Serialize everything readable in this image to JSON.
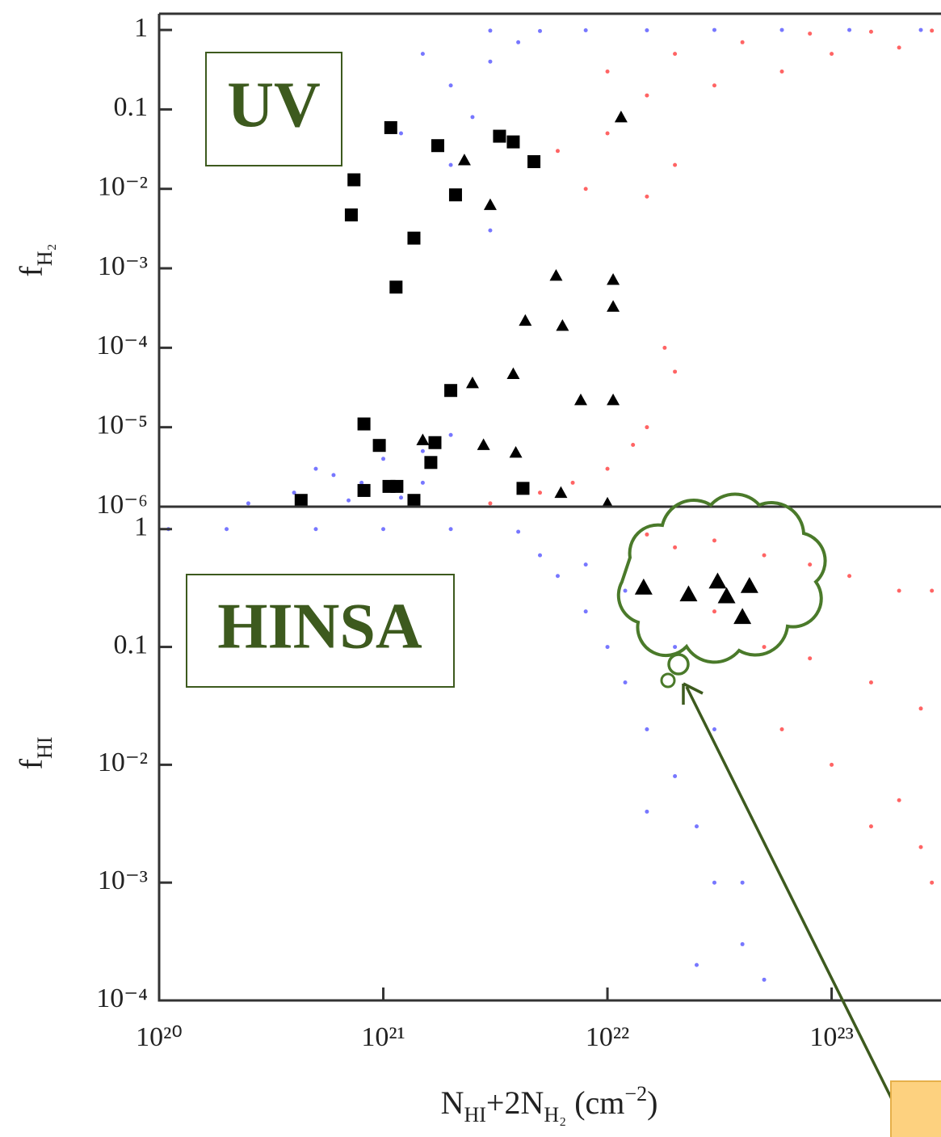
{
  "chart_data": [
    {
      "type": "scatter",
      "log_x": true,
      "log_y": true,
      "xlim": [
        1e+20,
        3e+23
      ],
      "ylim": [
        1e-06,
        1.6
      ],
      "yticks": [
        1,
        0.1,
        {
          "value": 0.01,
          "label": "10⁻²"
        },
        {
          "value": 0.001,
          "label": "10⁻³"
        },
        {
          "value": 0.0001,
          "label": "10⁻⁴"
        },
        {
          "value": 1e-05,
          "label": "10⁻⁵"
        },
        {
          "value": 1e-06,
          "label": "10⁻⁶"
        }
      ],
      "ylabel": {
        "text": "f",
        "sub": "H₂"
      },
      "annotation": "UV",
      "series": [
        {
          "marker": "dot",
          "color": "#4a4aff",
          "x": [
            3e+21,
            5e+21,
            8e+21,
            1.5e+22,
            3e+22,
            6e+22,
            1.2e+23,
            2.5e+23,
            1.5e+21,
            2e+21,
            2.5e+21,
            3e+21,
            4e+21,
            1.2e+21,
            2e+21,
            3e+21,
            2.5e+20,
            4e+20,
            6e+20,
            8e+20,
            1e+21,
            1.5e+21,
            2e+21,
            5e+20,
            1.2e+21,
            1.5e+21,
            7e+20
          ],
          "values": [
            0.98,
            0.97,
            0.99,
            0.99,
            1,
            1,
            1,
            1,
            0.5,
            0.2,
            0.08,
            0.4,
            0.7,
            0.05,
            0.02,
            0.003,
            1.1e-06,
            1.5e-06,
            2.5e-06,
            2e-06,
            4e-06,
            5e-06,
            8e-06,
            3e-06,
            1.3e-06,
            2e-06,
            1.2e-06
          ]
        },
        {
          "marker": "dot",
          "color": "#ff3030",
          "x": [
            1e+22,
            2e+22,
            4e+22,
            8e+22,
            1.5e+23,
            2.8e+23,
            1.5e+22,
            3e+22,
            6e+22,
            1e+23,
            2e+23,
            6e+21,
            8e+21,
            1e+22,
            1.5e+22,
            2e+22,
            3e+21,
            5e+21,
            7e+21,
            1e+22,
            1.3e+22,
            1.5e+22,
            2e+22,
            1.8e+22
          ],
          "values": [
            0.3,
            0.5,
            0.7,
            0.9,
            0.95,
            0.98,
            0.15,
            0.2,
            0.3,
            0.5,
            0.6,
            0.03,
            0.01,
            0.05,
            0.008,
            0.02,
            1.1e-06,
            1.5e-06,
            2e-06,
            3e-06,
            6e-06,
            1e-05,
            5e-05,
            0.0001
          ]
        },
        {
          "marker": "square",
          "color": "#000000",
          "x": [
            7.4e+20,
            7.2e+20,
            1.08e+21,
            1.75e+21,
            2.1e+21,
            1.37e+21,
            1.14e+21,
            3.3e+21,
            3.8e+21,
            4.7e+21,
            2e+21,
            8.2e+20,
            9.6e+20,
            1.7e+21,
            1.63e+21,
            8.2e+20,
            1.06e+21,
            1.15e+21,
            1.37e+21,
            4.3e+20,
            4.2e+21
          ],
          "values": [
            0.013,
            0.0047,
            0.059,
            0.035,
            0.0084,
            0.0024,
            0.00058,
            0.046,
            0.039,
            0.022,
            2.9e-05,
            1.1e-05,
            5.9e-06,
            6.4e-06,
            3.6e-06,
            1.6e-06,
            1.8e-06,
            1.8e-06,
            1.2e-06,
            1.2e-06,
            1.7e-06
          ]
        },
        {
          "marker": "triangle",
          "color": "#000000",
          "x": [
            1.15e+22,
            2.3e+21,
            3e+21,
            5.9e+21,
            1.06e+22,
            1.06e+22,
            4.3e+21,
            6.3e+21,
            3.8e+21,
            2.5e+21,
            7.6e+21,
            1.06e+22,
            1.5e+21,
            2.8e+21,
            3.9e+21,
            6.2e+21,
            1e+22
          ],
          "values": [
            0.08,
            0.023,
            0.0063,
            0.00081,
            0.00072,
            0.00033,
            0.00022,
            0.00019,
            4.7e-05,
            3.6e-05,
            2.2e-05,
            2.2e-05,
            6.9e-06,
            6e-06,
            4.8e-06,
            1.5e-06,
            1.1e-06
          ]
        }
      ]
    },
    {
      "type": "scatter",
      "log_x": true,
      "log_y": true,
      "xlim": [
        1e+20,
        3e+23
      ],
      "ylim": [
        0.0001,
        1.55
      ],
      "xticks": [
        {
          "value": 1e+20,
          "label": "10²⁰"
        },
        {
          "value": 1e+21,
          "label": "10²¹"
        },
        {
          "value": 1e+22,
          "label": "10²²"
        },
        {
          "value": 1e+23,
          "label": "10²³"
        }
      ],
      "yticks": [
        1,
        0.1,
        {
          "value": 0.01,
          "label": "10⁻²"
        },
        {
          "value": 0.001,
          "label": "10⁻³"
        },
        {
          "value": 0.0001,
          "label": "10⁻⁴"
        }
      ],
      "ylabel": {
        "text": "f",
        "sub": "HI"
      },
      "xlabel": {
        "parts": [
          "N",
          "HI",
          "+2N",
          "H₂",
          " (cm",
          "−2",
          ")"
        ]
      },
      "annotation": "HINSA",
      "series": [
        {
          "marker": "dot",
          "color": "#4a4aff",
          "x": [
            1.1e+20,
            2e+20,
            5e+20,
            1e+21,
            2e+21,
            4e+21,
            5e+21,
            6e+21,
            8e+21,
            1e+22,
            1.2e+22,
            1.5e+22,
            2e+22,
            2.5e+22,
            3e+22,
            4e+22,
            5e+22,
            8e+21,
            1.2e+22,
            2e+22,
            3e+22,
            1.5e+22,
            2.5e+22,
            4e+22
          ],
          "values": [
            1,
            1,
            1,
            1,
            1,
            0.95,
            0.6,
            0.4,
            0.2,
            0.1,
            0.05,
            0.02,
            0.008,
            0.003,
            0.001,
            0.0003,
            0.00015,
            0.5,
            0.3,
            0.1,
            0.02,
            0.004,
            0.0002,
            0.001
          ]
        },
        {
          "marker": "dot",
          "color": "#ff3030",
          "x": [
            1.5e+22,
            2e+22,
            3e+22,
            5e+22,
            8e+22,
            1.2e+23,
            2e+23,
            2.8e+23,
            3e+22,
            5e+22,
            8e+22,
            1.5e+23,
            2.5e+23,
            6e+22,
            1e+23,
            2e+23,
            1.5e+23,
            2.5e+23,
            2.8e+23
          ],
          "values": [
            0.9,
            0.7,
            0.8,
            0.6,
            0.5,
            0.4,
            0.3,
            0.3,
            0.2,
            0.1,
            0.08,
            0.05,
            0.03,
            0.02,
            0.01,
            0.005,
            0.003,
            0.002,
            0.001
          ]
        },
        {
          "marker": "triangle",
          "color": "#000000",
          "x": [
            1.45e+22,
            2.3e+22,
            3.1e+22,
            3.4e+22,
            4.3e+22,
            4e+22
          ],
          "values": [
            0.32,
            0.28,
            0.36,
            0.27,
            0.33,
            0.18
          ]
        }
      ]
    }
  ]
}
